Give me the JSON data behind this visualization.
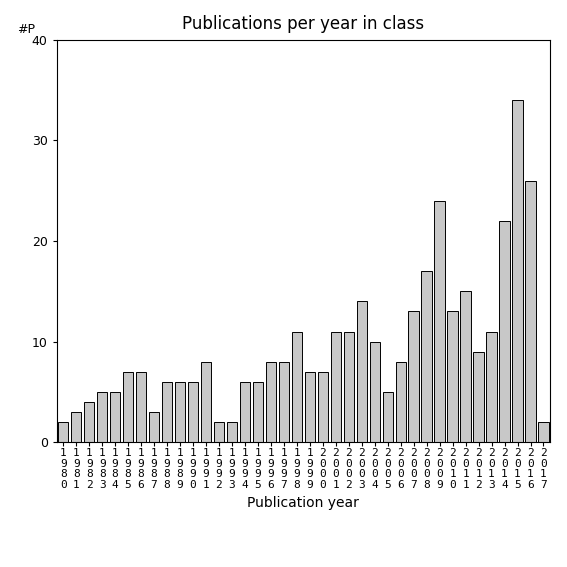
{
  "title": "Publications per year in class",
  "xlabel": "Publication year",
  "ylabel": "#P",
  "years": [
    "1980",
    "1981",
    "1982",
    "1983",
    "1984",
    "1985",
    "1986",
    "1987",
    "1988",
    "1989",
    "1990",
    "1991",
    "1992",
    "1993",
    "1994",
    "1995",
    "1996",
    "1997",
    "1998",
    "1999",
    "2000",
    "2001",
    "2002",
    "2003",
    "2004",
    "2005",
    "2006",
    "2007",
    "2008",
    "2009",
    "2010",
    "2011",
    "2012",
    "2013",
    "2014",
    "2015",
    "2016",
    "2017"
  ],
  "values": [
    2,
    3,
    4,
    5,
    5,
    7,
    7,
    3,
    6,
    6,
    6,
    8,
    2,
    2,
    6,
    6,
    8,
    8,
    11,
    7,
    7,
    11,
    11,
    14,
    10,
    5,
    8,
    13,
    17,
    24,
    13,
    15,
    9,
    11,
    22,
    34,
    26,
    2
  ],
  "bar_color": "#c8c8c8",
  "bar_edge_color": "#000000",
  "ylim": [
    0,
    40
  ],
  "yticks": [
    0,
    10,
    20,
    30,
    40
  ],
  "background_color": "#ffffff",
  "title_fontsize": 12,
  "axis_fontsize": 10,
  "tick_fontsize": 9,
  "stacked_label_fontsize": 8
}
